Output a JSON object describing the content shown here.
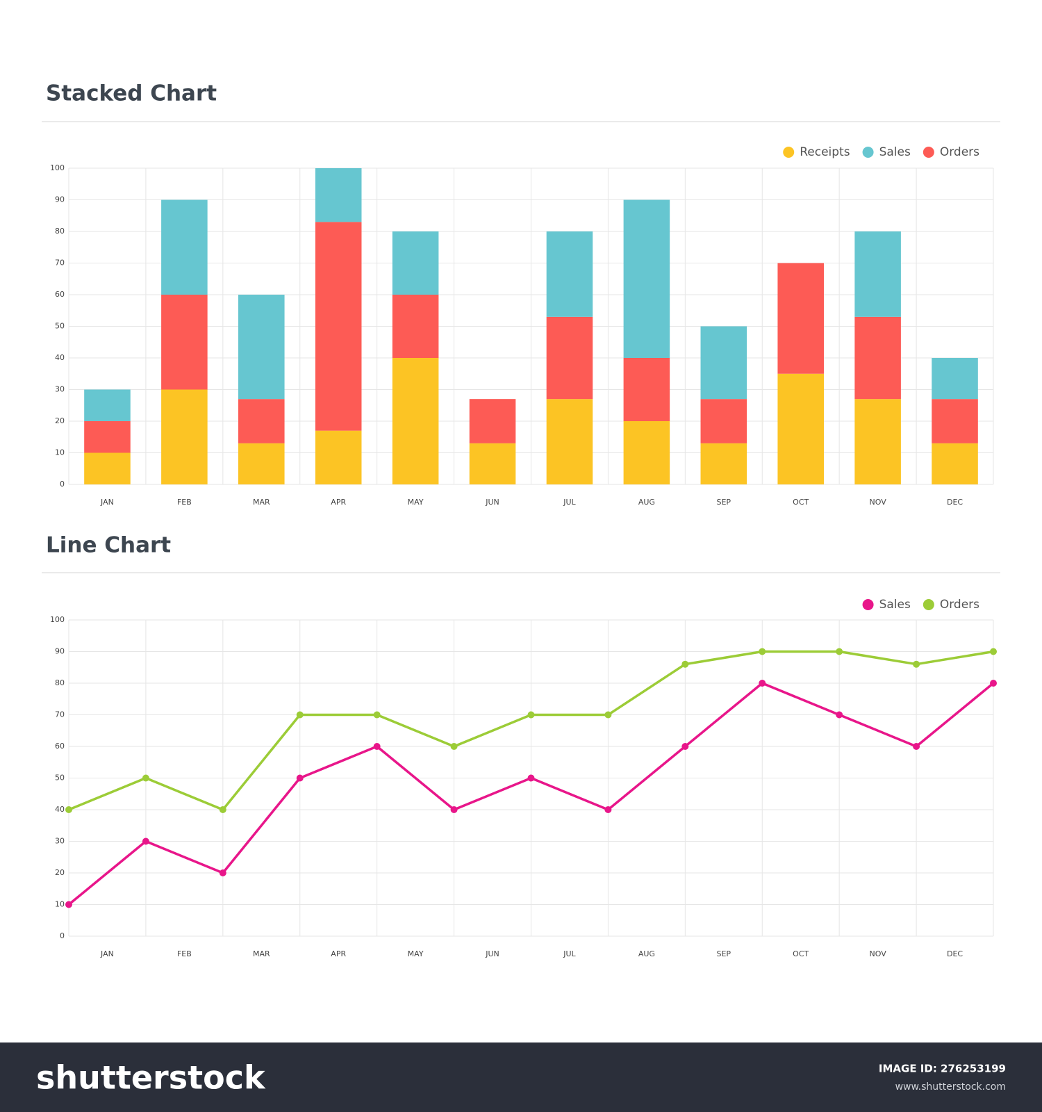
{
  "chart_data": [
    {
      "type": "bar",
      "stacked": true,
      "title": "Stacked Chart",
      "categories": [
        "JAN",
        "FEB",
        "MAR",
        "APR",
        "MAY",
        "JUN",
        "JUL",
        "AUG",
        "SEP",
        "OCT",
        "NOV",
        "DEC"
      ],
      "series": [
        {
          "name": "Receipts",
          "color": "#fcc424",
          "values": [
            10,
            30,
            13,
            17,
            40,
            13,
            27,
            20,
            13,
            35,
            27,
            13
          ]
        },
        {
          "name": "Sales",
          "color": "#66c6d0",
          "values": [
            10,
            30,
            33,
            17,
            20,
            0,
            27,
            50,
            23,
            0,
            27,
            13
          ]
        },
        {
          "name": "Orders",
          "color": "#fd5b55",
          "values": [
            10,
            30,
            14,
            66,
            20,
            14,
            26,
            20,
            14,
            35,
            26,
            14
          ]
        }
      ],
      "ylim": [
        0,
        100
      ],
      "yticks": [
        0,
        10,
        20,
        30,
        40,
        50,
        60,
        70,
        80,
        90,
        100
      ],
      "grid": true,
      "legend": "top-right"
    },
    {
      "type": "line",
      "title": "Line Chart",
      "categories": [
        "JAN",
        "FEB",
        "MAR",
        "APR",
        "MAY",
        "JUN",
        "JUL",
        "AUG",
        "SEP",
        "OCT",
        "NOV",
        "DEC",
        null
      ],
      "series": [
        {
          "name": "Sales",
          "color": "#e8168a",
          "values": [
            10,
            30,
            20,
            50,
            60,
            40,
            50,
            40,
            60,
            80,
            70,
            60,
            80
          ]
        },
        {
          "name": "Orders",
          "color": "#9ccc37",
          "values": [
            40,
            50,
            40,
            70,
            70,
            60,
            70,
            70,
            86,
            90,
            90,
            86,
            90
          ]
        }
      ],
      "ylim": [
        0,
        100
      ],
      "yticks": [
        0,
        10,
        20,
        30,
        40,
        50,
        60,
        70,
        80,
        90,
        100
      ],
      "grid": true,
      "legend": "top-right"
    }
  ],
  "footer": {
    "logo": "shutterstock",
    "image_id": "IMAGE ID: 276253199",
    "url": "www.shutterstock.com"
  }
}
